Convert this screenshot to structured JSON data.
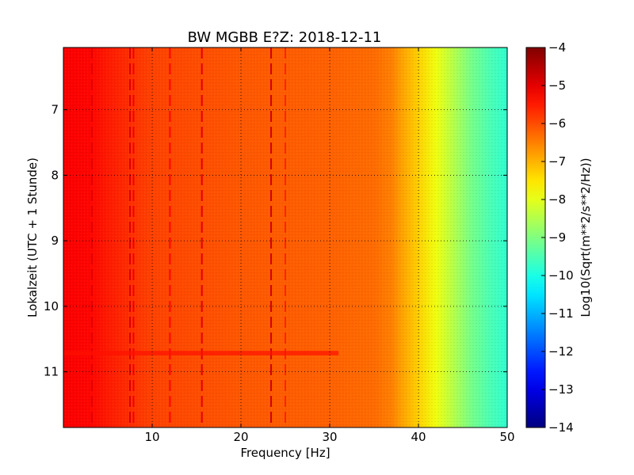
{
  "chart_data": {
    "type": "heatmap",
    "title": "BW MGBB E?Z: 2018-12-11",
    "xlabel": "Frequency [Hz]",
    "ylabel": "Lokalzeit (UTC + 1 Stunde)",
    "xlim": [
      0,
      50
    ],
    "ylim": [
      11.85,
      6.05
    ],
    "x_ticks": [
      10,
      20,
      30,
      40,
      50
    ],
    "y_ticks": [
      7,
      8,
      9,
      10,
      11
    ],
    "grid": true,
    "colormap": "jet",
    "colorbar": {
      "label": "Log10(Sqrt(m**2/s**2/Hz))",
      "min": -14,
      "max": -4,
      "ticks": [
        -4,
        -5,
        -6,
        -7,
        -8,
        -9,
        -10,
        -11,
        -12,
        -13,
        -14
      ]
    },
    "spectrum_profile": {
      "frequency_hz": [
        0,
        3,
        5,
        10,
        20,
        30,
        35,
        37,
        38,
        40,
        42,
        44,
        46,
        48,
        50
      ],
      "log10_amplitude": [
        -5.2,
        -5.3,
        -5.5,
        -5.9,
        -6.1,
        -6.2,
        -6.3,
        -6.5,
        -6.8,
        -7.3,
        -7.9,
        -8.5,
        -9.1,
        -9.5,
        -9.8
      ]
    },
    "vertical_lines": [
      {
        "frequency_hz": 3.2,
        "log10_amplitude": -5.0
      },
      {
        "frequency_hz": 7.5,
        "log10_amplitude": -4.9
      },
      {
        "frequency_hz": 7.9,
        "log10_amplitude": -5.1
      },
      {
        "frequency_hz": 12.0,
        "log10_amplitude": -5.3
      },
      {
        "frequency_hz": 15.6,
        "log10_amplitude": -5.0
      },
      {
        "frequency_hz": 23.4,
        "log10_amplitude": -4.8
      },
      {
        "frequency_hz": 25.0,
        "log10_amplitude": -5.6
      }
    ],
    "horizontal_bands": [
      {
        "time_start": 10.68,
        "time_end": 10.75,
        "frequency_max_hz": 31,
        "log10_amplitude": -5.4
      }
    ]
  }
}
